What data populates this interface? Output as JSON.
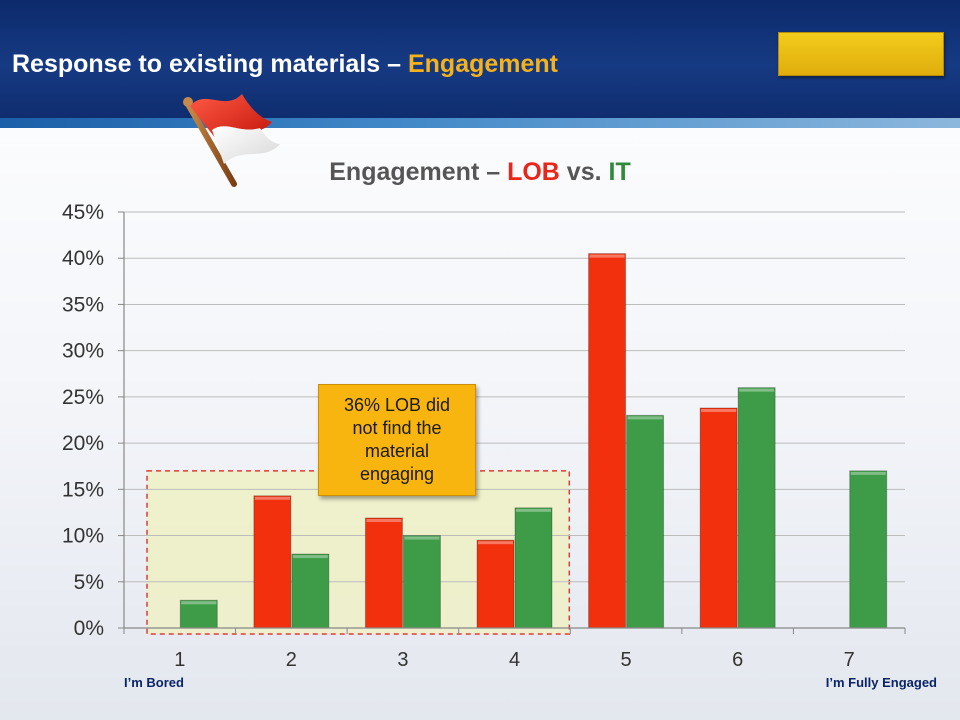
{
  "slide": {
    "title_prefix": "Response to existing materials – ",
    "title_highlight": "Engagement"
  },
  "callout": {
    "text": "36% LOB did not find the material engaging"
  },
  "colors": {
    "lob": "#f2300e",
    "it": "#3e9c48",
    "title_highlight": "#f5b21a",
    "callout": "#f8b50f",
    "highlight_region": "#eef0c8",
    "region_border": "#e23a3a"
  },
  "chart_data": {
    "type": "bar",
    "title_parts": [
      {
        "text": "Engagement – ",
        "color": "#555555"
      },
      {
        "text": "LOB",
        "color": "#e8261a"
      },
      {
        "text": " vs. ",
        "color": "#555555"
      },
      {
        "text": "IT",
        "color": "#2f8a3c"
      }
    ],
    "categories": [
      "1",
      "2",
      "3",
      "4",
      "5",
      "6",
      "7"
    ],
    "series": [
      {
        "name": "LOB",
        "values": [
          0,
          14.3,
          11.9,
          9.5,
          40.5,
          23.8,
          0
        ]
      },
      {
        "name": "IT",
        "values": [
          3,
          8,
          10,
          13,
          23,
          26,
          17
        ]
      }
    ],
    "ylim": [
      0,
      45
    ],
    "yticks": [
      0,
      5,
      10,
      15,
      20,
      25,
      30,
      35,
      40,
      45
    ],
    "ytick_format": "%",
    "grid": true,
    "legend": "none",
    "scale_end_labels": {
      "low": "I’m Bored",
      "high": "I’m Fully Engaged"
    },
    "highlighted_categories": [
      "1",
      "2",
      "3",
      "4"
    ]
  }
}
